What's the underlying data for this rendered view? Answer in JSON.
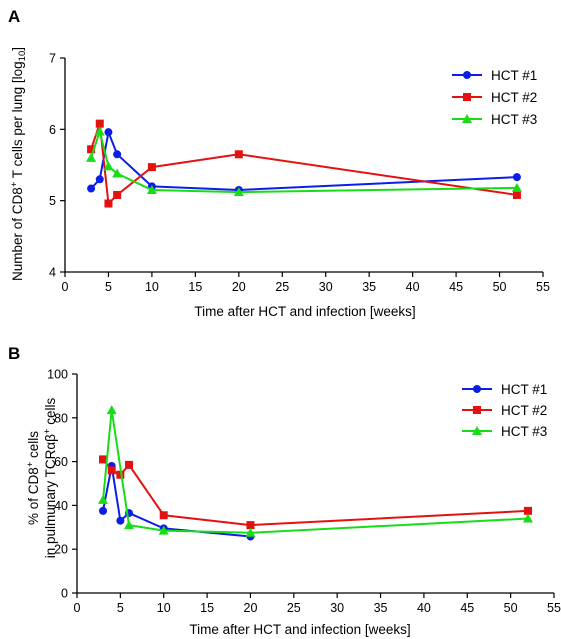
{
  "chart_data": [
    {
      "panel": "A",
      "type": "line",
      "xlabel": "Time after HCT and infection [weeks]",
      "ylabel_parts": [
        "Number of CD8",
        "+",
        " T cells per lung [log",
        "10",
        "]"
      ],
      "xlim": [
        0,
        55
      ],
      "ylim": [
        4,
        7
      ],
      "xticks": [
        0,
        5,
        10,
        15,
        20,
        25,
        30,
        35,
        40,
        45,
        50,
        55
      ],
      "yticks": [
        4,
        5,
        6,
        7
      ],
      "grid": false,
      "legend_position": "top-right",
      "series": [
        {
          "name": "HCT #1",
          "color": "#0a1ee6",
          "marker": "circle",
          "x": [
            3,
            4,
            5,
            6,
            10,
            20,
            52
          ],
          "y": [
            5.17,
            5.3,
            5.96,
            5.65,
            5.2,
            5.15,
            5.33
          ]
        },
        {
          "name": "HCT #2",
          "color": "#e3110f",
          "marker": "square",
          "x": [
            3,
            4,
            5,
            6,
            10,
            20,
            52
          ],
          "y": [
            5.72,
            6.08,
            4.96,
            5.08,
            5.47,
            5.65,
            5.08
          ]
        },
        {
          "name": "HCT #3",
          "color": "#19dc19",
          "marker": "triangle",
          "x": [
            3,
            4,
            5,
            6,
            10,
            20,
            52
          ],
          "y": [
            5.6,
            5.97,
            5.48,
            5.38,
            5.15,
            5.12,
            5.18
          ]
        }
      ]
    },
    {
      "panel": "B",
      "type": "line",
      "xlabel": "Time after HCT and infection [weeks]",
      "ylabel_line1_parts": [
        "% of CD8",
        "+",
        " cells"
      ],
      "ylabel_line2_parts": [
        "in pulmunary TCRαβ",
        "+",
        " cells"
      ],
      "xlim": [
        0,
        55
      ],
      "ylim": [
        0,
        100
      ],
      "xticks": [
        0,
        5,
        10,
        15,
        20,
        25,
        30,
        35,
        40,
        45,
        50,
        55
      ],
      "yticks": [
        0,
        20,
        40,
        60,
        80,
        100
      ],
      "grid": false,
      "legend_position": "top-right",
      "series": [
        {
          "name": "HCT #1",
          "color": "#0a1ee6",
          "marker": "circle",
          "x": [
            3,
            4,
            5,
            6,
            10,
            20
          ],
          "y": [
            37.5,
            58,
            33,
            36.5,
            29.5,
            25.8
          ]
        },
        {
          "name": "HCT #2",
          "color": "#e3110f",
          "marker": "square",
          "x": [
            3,
            4,
            5,
            6,
            10,
            20,
            52
          ],
          "y": [
            61,
            56,
            54,
            58.5,
            35.5,
            31,
            37.5
          ]
        },
        {
          "name": "HCT #3",
          "color": "#19dc19",
          "marker": "triangle",
          "x": [
            3,
            4,
            6,
            10,
            20,
            52
          ],
          "y": [
            42.5,
            83.5,
            31,
            28.5,
            27.5,
            34
          ]
        }
      ]
    }
  ]
}
